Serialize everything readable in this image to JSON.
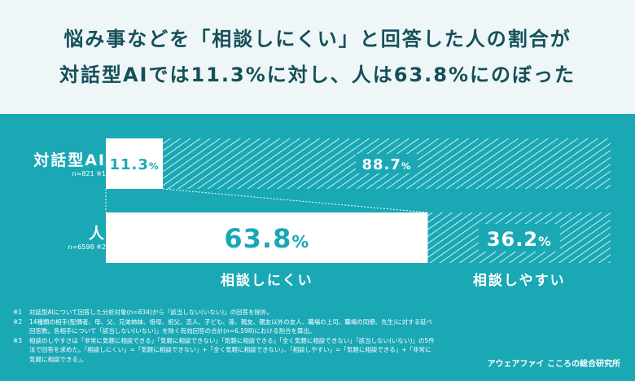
{
  "header": {
    "title_line1": "悩み事などを「相談しにくい」と回答した人の割合が",
    "title_line2": "対話型AIでは11.3%に対し、人は63.8%にのぼった"
  },
  "colors": {
    "teal": "#1aa8b5",
    "white": "#ffffff",
    "header_bg": "#eef6f7",
    "title": "#15505a"
  },
  "chart_data": {
    "type": "bar",
    "stacked": true,
    "orientation": "horizontal",
    "unit": "%",
    "categories": [
      {
        "label": "対話型AI",
        "note": "n=821 ※1"
      },
      {
        "label": "人",
        "note": "n=6598 ※2"
      }
    ],
    "series": [
      {
        "name": "相談しにくい",
        "values": [
          11.3,
          63.8
        ],
        "fill": "white"
      },
      {
        "name": "相談しやすい",
        "values": [
          88.7,
          36.2
        ],
        "fill": "hatched"
      }
    ],
    "xlim": [
      0,
      100
    ]
  },
  "notes": [
    {
      "k": "※1",
      "t": "対話型AIについて回答した分析対象(n=834)から「該当しない(いない)」の回答を除外。"
    },
    {
      "k": "※2",
      "t": "14種類の相手(配偶者、母、父、兄弟姉妹、祖母、祖父、恋人、子ども、孫、親友、親友以外の友人、職場の上司、職場の同僚、先生)に対する延べ回答数。各相手について「該当しない(いない)」を除く有効回答の合計(n=6,598)における割合を算出。"
    },
    {
      "k": "※3",
      "t": "相談のしやすさは「非常に気軽に相談できる」「気軽に相談できない」「気軽に相談できる」「全く気軽に相談できない」「該当しない(いない)」の5件法で回答を求めた。「相談しにくい」=「気軽に相談できない」+「全く気軽に相談できない」、「相談しやすい」=「気軽に相談できる」+「非常に気軽に相談できる」。"
    }
  ],
  "source": "アウェアファイ こころの総合研究所"
}
